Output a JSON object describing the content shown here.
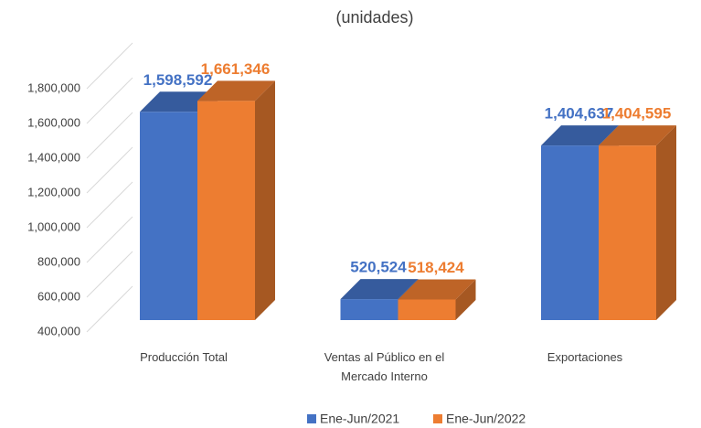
{
  "chart_data": {
    "type": "bar3d",
    "title": "(unidades)",
    "categories": [
      "Producción Total",
      "Ventas al Público en el Mercado Interno",
      "Exportaciones"
    ],
    "series": [
      {
        "name": "Ene-Jun/2021",
        "color": "#4472c4",
        "values": [
          1598592,
          520524,
          1404637
        ],
        "value_labels": [
          "1,598,592",
          "520,524",
          "1,404,637"
        ]
      },
      {
        "name": "Ene-Jun/2022",
        "color": "#ed7d31",
        "values": [
          1661346,
          518424,
          1404595
        ],
        "value_labels": [
          "1,661,346",
          "518,424",
          "1,404,595"
        ]
      }
    ],
    "ylim": [
      400000,
      1800000
    ],
    "yticks": [
      {
        "value": 400000,
        "label": "400,000"
      },
      {
        "value": 600000,
        "label": "600,000"
      },
      {
        "value": 800000,
        "label": "800,000"
      },
      {
        "value": 1000000,
        "label": "1,000,000"
      },
      {
        "value": 1200000,
        "label": "1,200,000"
      },
      {
        "value": 1400000,
        "label": "1,400,000"
      },
      {
        "value": 1600000,
        "label": "1,600,000"
      },
      {
        "value": 1800000,
        "label": "1,800,000"
      }
    ],
    "grid": true,
    "legend": "bottom"
  }
}
